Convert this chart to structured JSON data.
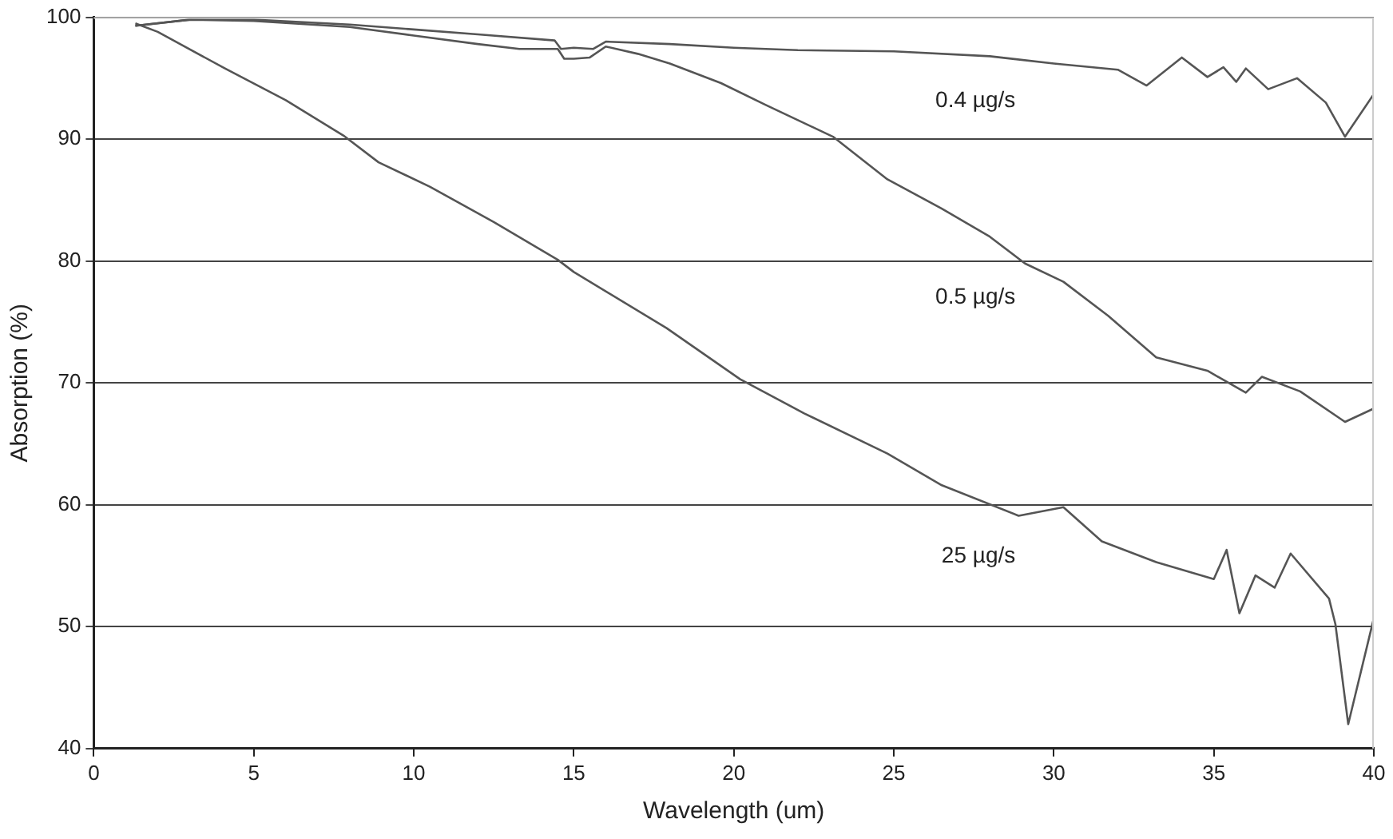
{
  "chart_data": {
    "type": "line",
    "xlabel": "Wavelength (um)",
    "ylabel": "Absorption (%)",
    "xlim": [
      0,
      40
    ],
    "xticks": [
      0,
      5,
      10,
      15,
      20,
      25,
      30,
      35,
      40
    ],
    "ylim": [
      40,
      100
    ],
    "yticks": [
      40,
      50,
      60,
      70,
      80,
      90,
      100
    ],
    "grid": "y",
    "legend": false,
    "marker": "none",
    "line_style": "solid",
    "series": [
      {
        "name": "0.4 µg/s",
        "color": "#555555",
        "x": [
          1.3,
          3,
          5,
          8,
          10,
          12,
          14.4,
          14.6,
          15,
          15.6,
          16,
          18,
          20,
          22,
          25,
          28,
          30,
          32,
          32.9,
          34,
          34.8,
          35.3,
          35.7,
          36,
          36.7,
          37.6,
          38.5,
          39.1,
          40
        ],
        "values": [
          99.3,
          99.8,
          99.8,
          99.4,
          99,
          98.6,
          98.1,
          97.4,
          97.5,
          97.4,
          98,
          97.8,
          97.5,
          97.3,
          97.2,
          96.8,
          96.2,
          95.7,
          94.4,
          96.7,
          95.1,
          95.9,
          94.7,
          95.8,
          94.1,
          95,
          93,
          90.2,
          93.7
        ]
      },
      {
        "name": "0.5 µg/s",
        "color": "#555555",
        "x": [
          1.3,
          3,
          5,
          8,
          10,
          12,
          13.3,
          14.5,
          14.7,
          15,
          15.5,
          16,
          17,
          18,
          19.6,
          21,
          23.1,
          24.8,
          26.5,
          28,
          29.1,
          30.3,
          31.7,
          33.2,
          34.8,
          36,
          36.5,
          37.7,
          39.1,
          40
        ],
        "values": [
          99.3,
          99.8,
          99.7,
          99.2,
          98.5,
          97.8,
          97.4,
          97.4,
          96.6,
          96.6,
          96.7,
          97.6,
          97,
          96.2,
          94.6,
          92.8,
          90.2,
          86.7,
          84.3,
          82,
          79.8,
          78.3,
          75.5,
          72.1,
          71,
          69.2,
          70.5,
          69.3,
          66.8,
          67.9
        ]
      },
      {
        "name": "25 µg/s",
        "color": "#555555",
        "x": [
          1.3,
          2,
          4.1,
          6,
          7.8,
          8.9,
          10.5,
          12.5,
          14.5,
          15,
          17.9,
          20.2,
          22.2,
          24.8,
          26.5,
          28.9,
          30.3,
          31.5,
          33.2,
          35,
          35.4,
          35.8,
          36.3,
          36.9,
          37.4,
          38.6,
          38.8,
          39.2,
          40
        ],
        "values": [
          99.5,
          98.8,
          95.8,
          93.2,
          90.3,
          88.1,
          86.1,
          83.2,
          80.1,
          79.1,
          74.5,
          70.3,
          67.5,
          64.2,
          61.6,
          59.1,
          59.8,
          57,
          55.3,
          53.9,
          56.3,
          51.1,
          54.2,
          53.2,
          56,
          52.3,
          50.2,
          42,
          50.7
        ]
      }
    ]
  }
}
